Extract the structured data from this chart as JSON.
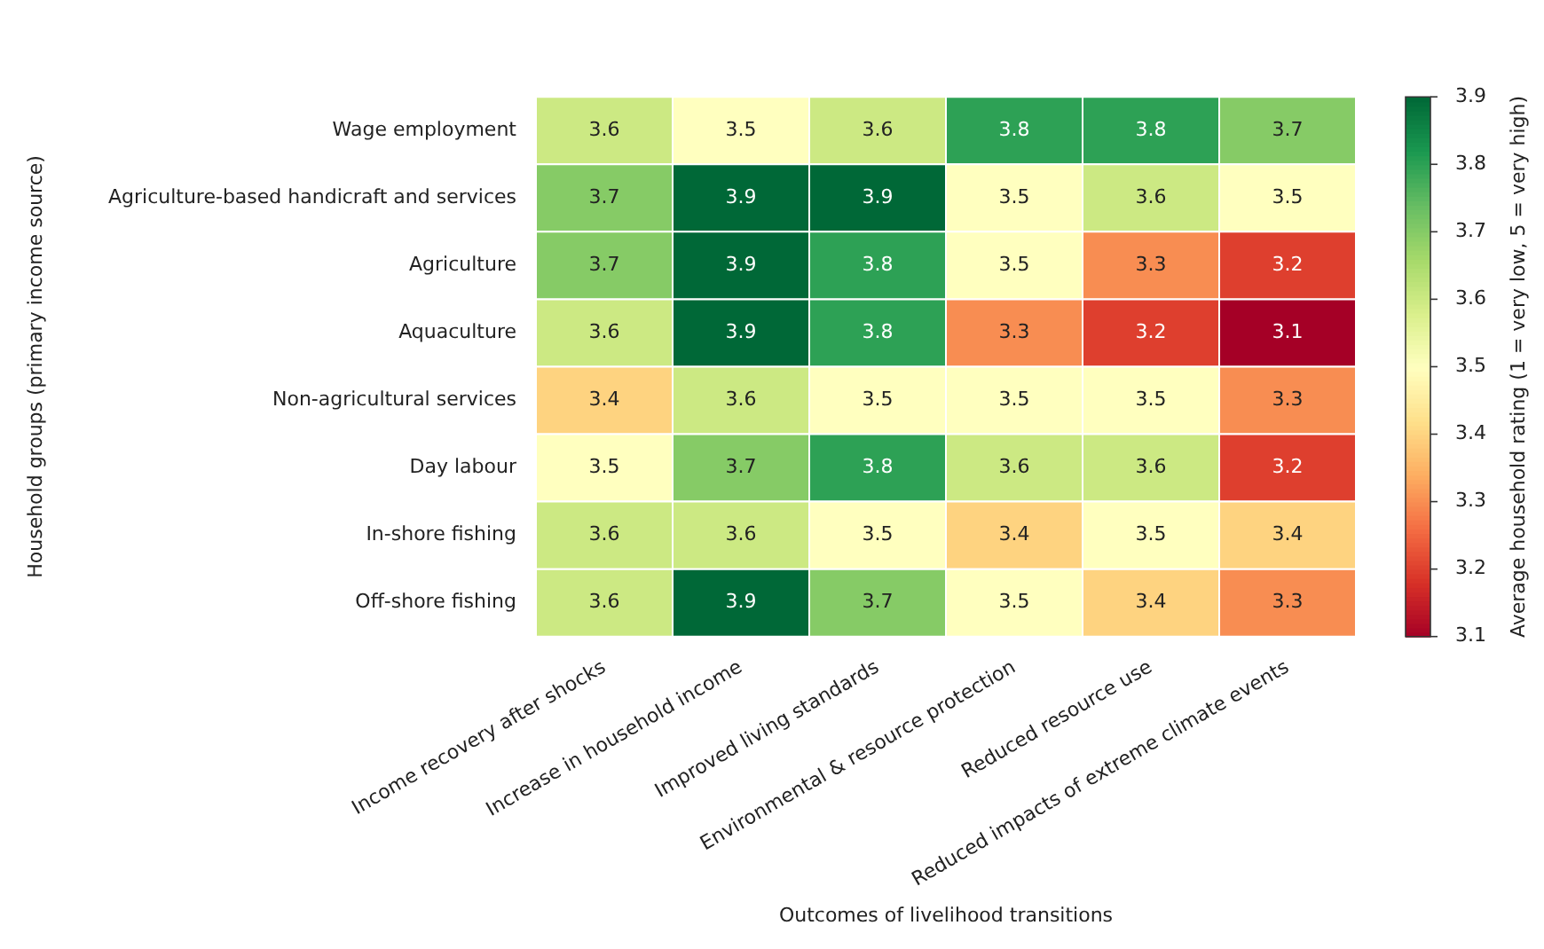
{
  "chart_data": {
    "type": "heatmap",
    "xlabel": "Outcomes of livelihood transitions",
    "ylabel": "Household groups (primary income source)",
    "clabel": "Average household rating (1 = very low, 5 = very high)",
    "categories": [
      "Income recovery after shocks",
      "Increase in household income",
      "Improved living standards",
      "Environmental & resource protection",
      "Reduced resource use",
      "Reduced impacts of extreme climate events"
    ],
    "y_categories": [
      "Wage employment",
      "Agriculture-based handicraft and services",
      "Agriculture",
      "Aquaculture",
      "Non-agricultural services",
      "Day labour",
      "In-shore fishing",
      "Off-shore fishing"
    ],
    "cells": [
      [
        3.6,
        3.5,
        3.6,
        3.8,
        3.8,
        3.7
      ],
      [
        3.7,
        3.9,
        3.9,
        3.5,
        3.6,
        3.5
      ],
      [
        3.7,
        3.9,
        3.8,
        3.5,
        3.3,
        3.2
      ],
      [
        3.6,
        3.9,
        3.8,
        3.3,
        3.2,
        3.1
      ],
      [
        3.4,
        3.6,
        3.5,
        3.5,
        3.5,
        3.3
      ],
      [
        3.5,
        3.7,
        3.8,
        3.6,
        3.6,
        3.2
      ],
      [
        3.6,
        3.6,
        3.5,
        3.4,
        3.5,
        3.4
      ],
      [
        3.6,
        3.9,
        3.7,
        3.5,
        3.4,
        3.3
      ]
    ],
    "clim": [
      3.1,
      3.9
    ],
    "cticks": [
      3.1,
      3.2,
      3.3,
      3.4,
      3.5,
      3.6,
      3.7,
      3.8,
      3.9
    ],
    "data_labels": true
  }
}
